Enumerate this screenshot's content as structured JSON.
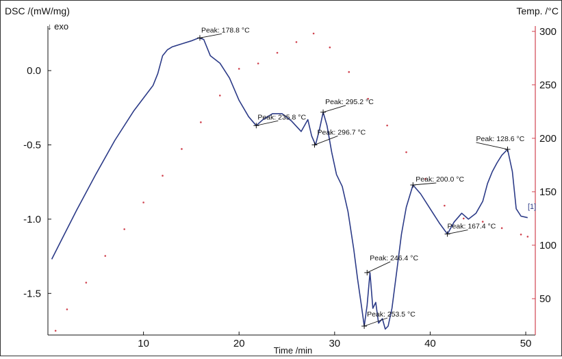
{
  "chart_data": {
    "type": "line",
    "title": "",
    "xlabel": "Time /min",
    "ylabel": "DSC /(mW/mg)",
    "y2label": "Temp. /°C",
    "exo_label": "↓ exo",
    "xlim": [
      0,
      51
    ],
    "ylim": [
      -1.78,
      0.3
    ],
    "y2lim": [
      16,
      305
    ],
    "x_ticks": [
      10,
      20,
      30,
      40,
      50
    ],
    "y_ticks": [
      0.0,
      -0.5,
      -1.0,
      -1.5
    ],
    "y_tick_labels": [
      "0.0",
      "-0.5",
      "-1.0",
      "-1.5"
    ],
    "y2_ticks": [
      50,
      100,
      150,
      200,
      250,
      300
    ],
    "grid": false,
    "colors": {
      "dsc": "#2b3a87",
      "temp": "#d0434f",
      "marker": "#111111"
    },
    "series": [
      {
        "name": "",
        "axis": "left",
        "x": [
          0.4,
          1.5,
          3,
          5,
          7,
          9,
          11,
          11.5,
          12,
          12.5,
          13,
          14,
          15,
          15.8,
          16.3,
          17,
          18,
          19,
          20,
          21,
          21.8,
          22.5,
          23.5,
          24.5,
          25.5,
          26.5,
          27.2,
          27.6,
          28,
          28.4,
          28.8,
          29.2,
          29.7,
          30.2,
          30.8,
          31.4,
          32,
          32.4,
          32.8,
          33.1,
          33.4,
          33.7,
          34,
          34.3,
          34.6,
          35,
          35.3,
          35.6,
          36,
          36.5,
          37,
          37.5,
          38.2,
          39,
          40,
          41,
          41.8,
          42.5,
          43.3,
          44,
          44.8,
          45.5,
          46,
          46.5,
          47,
          47.5,
          48.1,
          48.6,
          49,
          49.5,
          50.2
        ],
        "y": [
          -1.27,
          -1.13,
          -0.94,
          -0.7,
          -0.47,
          -0.27,
          -0.1,
          -0.02,
          0.1,
          0.14,
          0.16,
          0.18,
          0.2,
          0.22,
          0.21,
          0.1,
          0.05,
          -0.05,
          -0.2,
          -0.31,
          -0.37,
          -0.33,
          -0.29,
          -0.29,
          -0.34,
          -0.41,
          -0.33,
          -0.44,
          -0.5,
          -0.4,
          -0.28,
          -0.37,
          -0.55,
          -0.7,
          -0.78,
          -0.95,
          -1.2,
          -1.4,
          -1.58,
          -1.72,
          -1.58,
          -1.36,
          -1.6,
          -1.56,
          -1.7,
          -1.67,
          -1.74,
          -1.72,
          -1.6,
          -1.35,
          -1.1,
          -0.92,
          -0.77,
          -0.83,
          -0.93,
          -1.03,
          -1.1,
          -1.02,
          -0.96,
          -1.0,
          -0.96,
          -0.88,
          -0.76,
          -0.68,
          -0.62,
          -0.57,
          -0.53,
          -0.68,
          -0.93,
          -0.98,
          -0.99
        ]
      },
      {
        "name": "",
        "axis": "right",
        "style": "dotted",
        "x": [
          0.8,
          2,
          4,
          6,
          8,
          10,
          12,
          14,
          16,
          18,
          20,
          22,
          24,
          26,
          27.8,
          29.5,
          31.5,
          33.5,
          35.5,
          37.5,
          39.5,
          41.5,
          43.5,
          45.5,
          47.5,
          49.5,
          50.2
        ],
        "y": [
          20,
          40,
          65,
          90,
          115,
          140,
          165,
          190,
          215,
          240,
          265,
          270,
          280,
          290,
          298,
          285,
          262,
          237,
          212,
          187,
          162,
          137,
          125,
          122,
          116,
          110,
          108
        ]
      }
    ],
    "annotations": [
      {
        "text": "Peak: 178.8 °C",
        "x": 15.9,
        "y": 0.22
      },
      {
        "text": "Peak: 235.8 °C",
        "x": 21.8,
        "y": -0.37
      },
      {
        "text": "Peak: 295.2 °C",
        "x": 28.8,
        "y": -0.28
      },
      {
        "text": "Peak: 296.7 °C",
        "x": 27.9,
        "y": -0.5
      },
      {
        "text": "Peak: 200.0 °C",
        "x": 38.2,
        "y": -0.77
      },
      {
        "text": "Peak: 128.6 °C",
        "x": 48.1,
        "y": -0.53
      },
      {
        "text": "Peak: 167.4 °C",
        "x": 41.8,
        "y": -1.1
      },
      {
        "text": "Peak: 246.4 °C",
        "x": 33.4,
        "y": -1.36
      },
      {
        "text": "Peak: 253.5 °C",
        "x": 33.1,
        "y": -1.72
      }
    ],
    "curve_label": "[1]"
  }
}
